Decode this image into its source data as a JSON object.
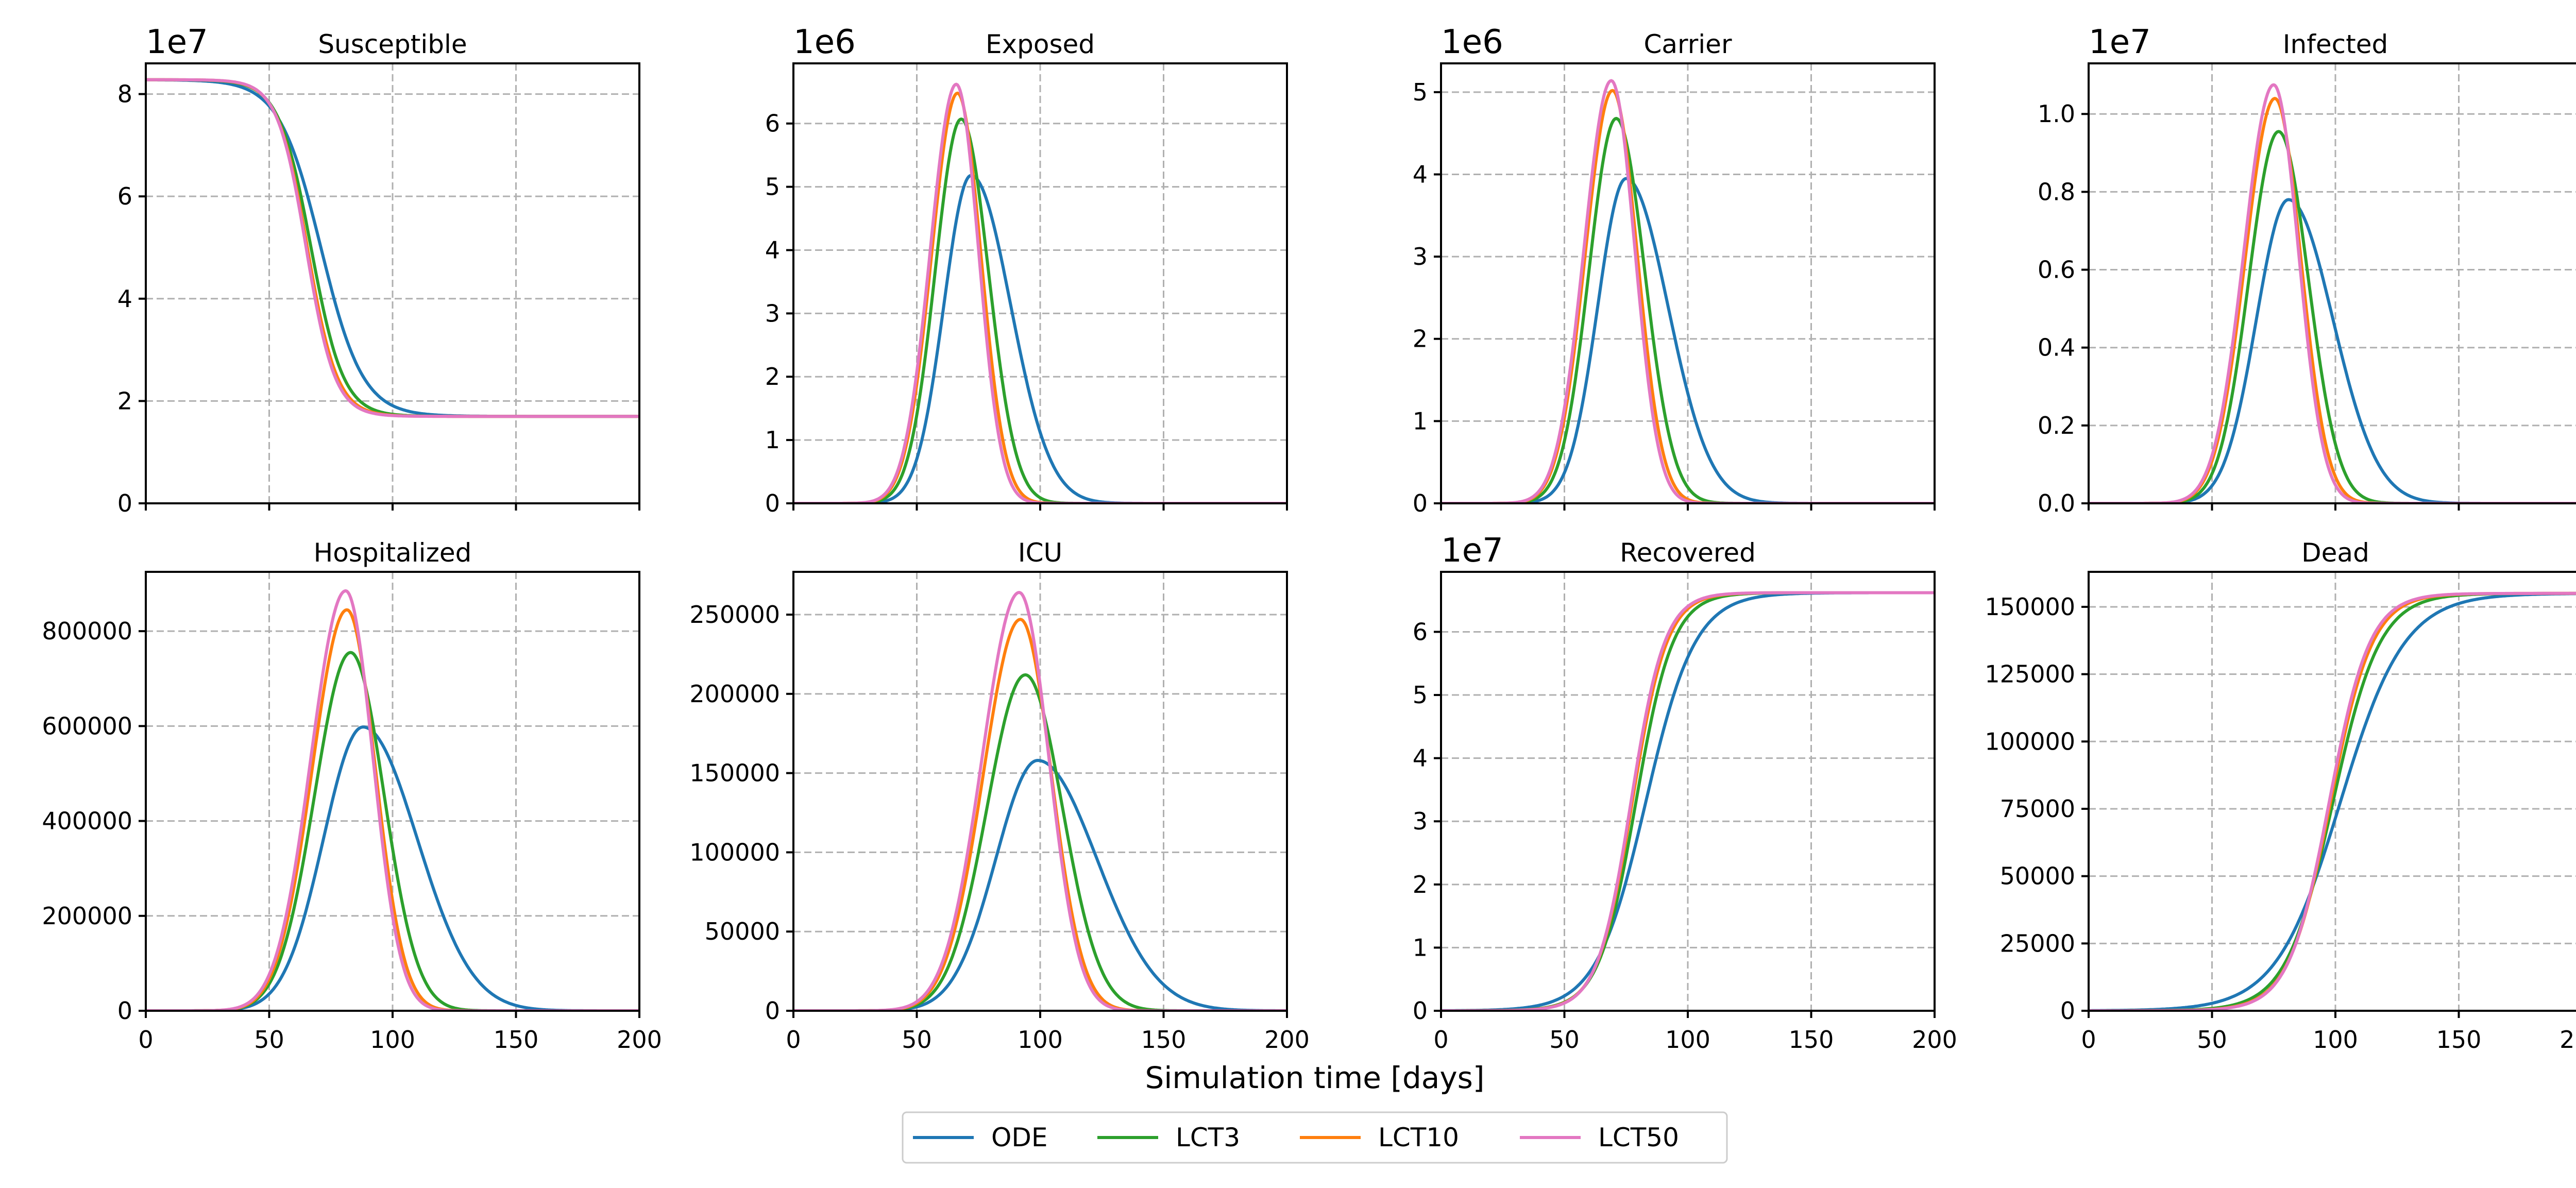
{
  "chart_data": {
    "type": "line",
    "xlabel": "Simulation time [days]",
    "xlim": [
      0,
      200
    ],
    "xticks": [
      0,
      50,
      100,
      150,
      200
    ],
    "grid": true,
    "legend": {
      "placement": "bottom-center",
      "entries": [
        {
          "name": "ODE",
          "color": "#1f77b4"
        },
        {
          "name": "LCT3",
          "color": "#2ca02c"
        },
        {
          "name": "LCT10",
          "color": "#ff7f0e"
        },
        {
          "name": "LCT50",
          "color": "#e377c2"
        }
      ]
    },
    "series_colors": {
      "ODE": "#1f77b4",
      "LCT3": "#2ca02c",
      "LCT10": "#ff7f0e",
      "LCT50": "#e377c2"
    },
    "panels": [
      {
        "title": "Susceptible",
        "shape": "sigmoid_down",
        "exponent_label": "1e7",
        "ylim": [
          0,
          8.6
        ],
        "yticks": [
          0,
          2,
          4,
          6,
          8
        ],
        "ytick_labels": [
          "0",
          "2",
          "4",
          "6",
          "8"
        ],
        "series": [
          {
            "name": "ODE",
            "start": 8.28,
            "end": 1.7,
            "midpoint": 71,
            "width": 8.5
          },
          {
            "name": "LCT3",
            "start": 8.28,
            "end": 1.7,
            "midpoint": 67,
            "width": 6.5
          },
          {
            "name": "LCT10",
            "start": 8.28,
            "end": 1.7,
            "midpoint": 65.5,
            "width": 6
          },
          {
            "name": "LCT50",
            "start": 8.28,
            "end": 1.7,
            "midpoint": 65,
            "width": 5.8
          }
        ]
      },
      {
        "title": "Exposed",
        "shape": "peak",
        "exponent_label": "1e6",
        "ylim": [
          0,
          6.95
        ],
        "yticks": [
          0,
          1,
          2,
          3,
          4,
          5,
          6
        ],
        "ytick_labels": [
          "0",
          "1",
          "2",
          "3",
          "4",
          "5",
          "6"
        ],
        "series": [
          {
            "name": "ODE",
            "peak_x": 72,
            "peak_y": 5.18,
            "rise_width": 11,
            "fall_width": 16
          },
          {
            "name": "LCT3",
            "peak_x": 68,
            "peak_y": 6.07,
            "rise_width": 10.5,
            "fall_width": 11
          },
          {
            "name": "LCT10",
            "peak_x": 66.5,
            "peak_y": 6.48,
            "rise_width": 10.5,
            "fall_width": 9.5
          },
          {
            "name": "LCT50",
            "peak_x": 66,
            "peak_y": 6.62,
            "rise_width": 10.5,
            "fall_width": 9
          }
        ]
      },
      {
        "title": "Carrier",
        "shape": "peak",
        "exponent_label": "1e6",
        "ylim": [
          0,
          5.35
        ],
        "yticks": [
          0,
          1,
          2,
          3,
          4,
          5
        ],
        "ytick_labels": [
          "0",
          "1",
          "2",
          "3",
          "4",
          "5"
        ],
        "series": [
          {
            "name": "ODE",
            "peak_x": 75,
            "peak_y": 3.95,
            "rise_width": 11.5,
            "fall_width": 17
          },
          {
            "name": "LCT3",
            "peak_x": 71,
            "peak_y": 4.68,
            "rise_width": 11,
            "fall_width": 11.5
          },
          {
            "name": "LCT10",
            "peak_x": 69.5,
            "peak_y": 5.02,
            "rise_width": 11,
            "fall_width": 10
          },
          {
            "name": "LCT50",
            "peak_x": 69,
            "peak_y": 5.14,
            "rise_width": 11,
            "fall_width": 9.5
          }
        ]
      },
      {
        "title": "Infected",
        "shape": "peak",
        "exponent_label": "1e7",
        "ylim": [
          0,
          1.13
        ],
        "yticks": [
          0,
          0.2,
          0.4,
          0.6,
          0.8,
          1.0
        ],
        "ytick_labels": [
          "0.0",
          "0.2",
          "0.4",
          "0.6",
          "0.8",
          "1.0"
        ],
        "series": [
          {
            "name": "ODE",
            "peak_x": 81,
            "peak_y": 0.78,
            "rise_width": 13,
            "fall_width": 18
          },
          {
            "name": "LCT3",
            "peak_x": 77,
            "peak_y": 0.955,
            "rise_width": 12,
            "fall_width": 12
          },
          {
            "name": "LCT10",
            "peak_x": 75.5,
            "peak_y": 1.04,
            "rise_width": 12,
            "fall_width": 10.5
          },
          {
            "name": "LCT50",
            "peak_x": 75,
            "peak_y": 1.075,
            "rise_width": 12,
            "fall_width": 10
          }
        ]
      },
      {
        "title": "Hospitalized",
        "shape": "peak",
        "exponent_label": "",
        "ylim": [
          0,
          925000
        ],
        "yticks": [
          0,
          200000,
          400000,
          600000,
          800000
        ],
        "ytick_labels": [
          "0",
          "200000",
          "400000",
          "600000",
          "800000"
        ],
        "series": [
          {
            "name": "ODE",
            "peak_x": 88,
            "peak_y": 598000,
            "rise_width": 16,
            "fall_width": 22
          },
          {
            "name": "LCT3",
            "peak_x": 83,
            "peak_y": 755000,
            "rise_width": 14.5,
            "fall_width": 13.5
          },
          {
            "name": "LCT10",
            "peak_x": 81.5,
            "peak_y": 845000,
            "rise_width": 14,
            "fall_width": 11.5
          },
          {
            "name": "LCT50",
            "peak_x": 81,
            "peak_y": 885000,
            "rise_width": 14,
            "fall_width": 11
          }
        ]
      },
      {
        "title": "ICU",
        "shape": "peak",
        "exponent_label": "",
        "ylim": [
          0,
          277000
        ],
        "yticks": [
          0,
          50000,
          100000,
          150000,
          200000,
          250000
        ],
        "ytick_labels": [
          "0",
          "50000",
          "100000",
          "150000",
          "200000",
          "250000"
        ],
        "series": [
          {
            "name": "ODE",
            "peak_x": 99,
            "peak_y": 158000,
            "rise_width": 17,
            "fall_width": 24
          },
          {
            "name": "LCT3",
            "peak_x": 94,
            "peak_y": 212000,
            "rise_width": 15.5,
            "fall_width": 15
          },
          {
            "name": "LCT10",
            "peak_x": 92,
            "peak_y": 247000,
            "rise_width": 15,
            "fall_width": 12.5
          },
          {
            "name": "LCT50",
            "peak_x": 91.5,
            "peak_y": 264000,
            "rise_width": 15,
            "fall_width": 12
          }
        ]
      },
      {
        "title": "Recovered",
        "shape": "sigmoid_up",
        "exponent_label": "1e7",
        "ylim": [
          0,
          6.95
        ],
        "yticks": [
          0,
          1,
          2,
          3,
          4,
          5,
          6
        ],
        "ytick_labels": [
          "0",
          "1",
          "2",
          "3",
          "4",
          "5",
          "6"
        ],
        "series": [
          {
            "name": "ODE",
            "start": 0,
            "end": 6.62,
            "midpoint": 83,
            "width": 10
          },
          {
            "name": "LCT3",
            "start": 0,
            "end": 6.62,
            "midpoint": 79,
            "width": 7.5
          },
          {
            "name": "LCT10",
            "start": 0,
            "end": 6.62,
            "midpoint": 77.5,
            "width": 7
          },
          {
            "name": "LCT50",
            "start": 0,
            "end": 6.62,
            "midpoint": 77,
            "width": 6.8
          }
        ]
      },
      {
        "title": "Dead",
        "shape": "sigmoid_up",
        "exponent_label": "",
        "ylim": [
          0,
          163000
        ],
        "yticks": [
          0,
          25000,
          50000,
          75000,
          100000,
          125000,
          150000
        ],
        "ytick_labels": [
          "0",
          "25000",
          "50000",
          "75000",
          "100000",
          "125000",
          "150000"
        ],
        "series": [
          {
            "name": "ODE",
            "start": 0,
            "end": 155000,
            "midpoint": 102,
            "width": 13
          },
          {
            "name": "LCT3",
            "start": 0,
            "end": 155000,
            "midpoint": 99,
            "width": 9.5
          },
          {
            "name": "LCT10",
            "start": 0,
            "end": 155000,
            "midpoint": 98,
            "width": 8.5
          },
          {
            "name": "LCT50",
            "start": 0,
            "end": 155000,
            "midpoint": 97.5,
            "width": 8.2
          }
        ]
      }
    ]
  }
}
